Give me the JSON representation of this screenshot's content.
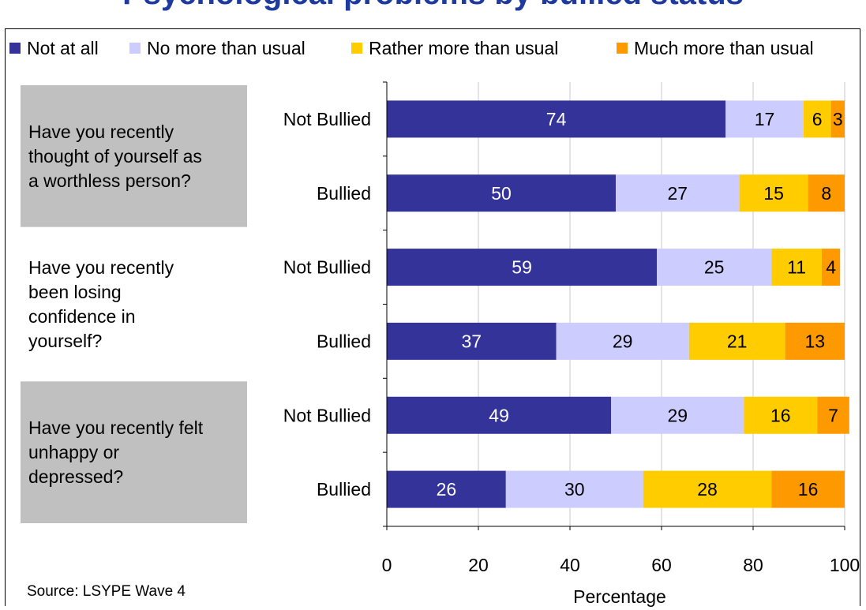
{
  "chart_data": {
    "type": "bar",
    "orientation": "horizontal",
    "stacked": true,
    "title": "Psychological problems by bullied status",
    "xlabel": "Percentage",
    "ylabel": "",
    "xlim": [
      0,
      100
    ],
    "xticks": [
      0,
      20,
      40,
      60,
      80,
      100
    ],
    "grid": true,
    "legend_position": "top",
    "series": [
      {
        "name": "Not at all",
        "color": "#333399",
        "label_color": "#ffffff",
        "values": [
          74,
          50,
          59,
          37,
          49,
          26
        ]
      },
      {
        "name": "No more than usual",
        "color": "#ccccff",
        "label_color": "#000000",
        "values": [
          17,
          27,
          25,
          29,
          29,
          30
        ]
      },
      {
        "name": "Rather more than usual",
        "color": "#ffcc00",
        "label_color": "#000000",
        "values": [
          6,
          15,
          11,
          21,
          16,
          28
        ]
      },
      {
        "name": "Much more than usual",
        "color": "#ff9900",
        "label_color": "#000000",
        "values": [
          3,
          8,
          4,
          13,
          7,
          16
        ]
      }
    ],
    "categories": [
      "Not Bullied",
      "Bullied",
      "Not Bullied",
      "Bullied",
      "Not Bullied",
      "Bullied"
    ],
    "question_groups": [
      {
        "question": "Have you recently thought of yourself as a worthless person?",
        "lines": [
          "Have you recently",
          "thought of yourself as",
          "a worthless person?"
        ],
        "shaded": true
      },
      {
        "question": "Have you recently been losing confidence in yourself?",
        "lines": [
          "Have you recently",
          "been losing",
          "confidence in",
          "yourself?"
        ],
        "shaded": false
      },
      {
        "question": "Have you recently felt unhappy or depressed?",
        "lines": [
          "Have you recently felt",
          "unhappy or",
          "depressed?"
        ],
        "shaded": true
      }
    ],
    "source": "Source:  LSYPE Wave 4"
  }
}
